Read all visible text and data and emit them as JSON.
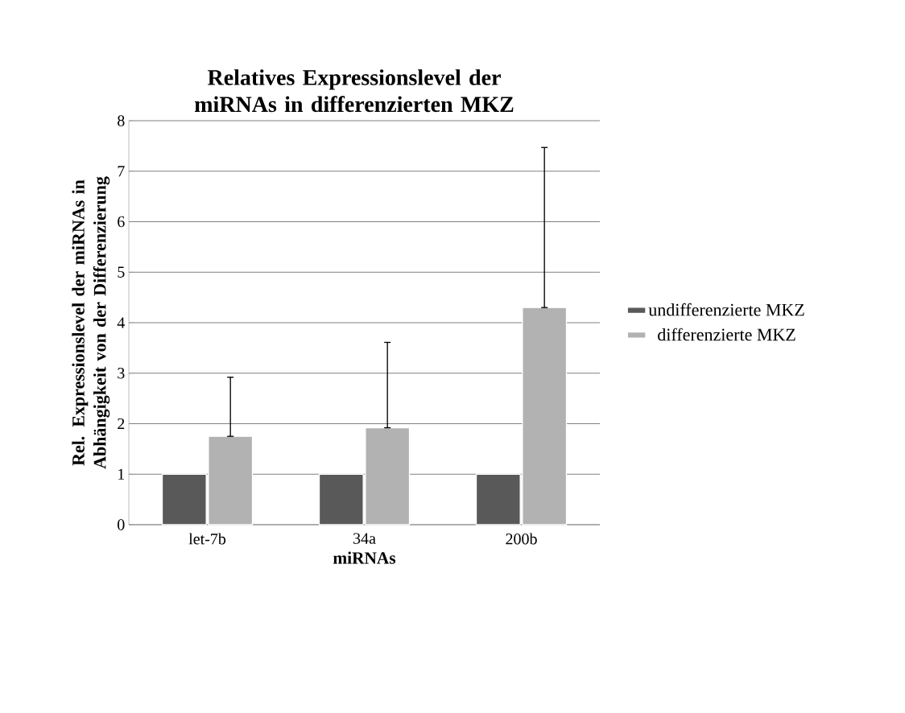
{
  "chart_data": {
    "type": "bar",
    "title": "Relatives Expressionslevel der miRNAs in differenzierten MKZ",
    "xlabel": "miRNAs",
    "ylabel": "Rel. Expressionslevel der miRNAs in Abhängigkeit von der Differenzierung",
    "categories": [
      "let-7b",
      "34a",
      "200b"
    ],
    "series": [
      {
        "name": "undifferenzierte MKZ",
        "color": "#595959",
        "values": [
          1,
          1,
          1
        ]
      },
      {
        "name": "differenzierte MKZ",
        "color": "#b2b2b2",
        "values": [
          1.75,
          1.92,
          4.3
        ],
        "errors": [
          [
            1.75,
            2.92
          ],
          [
            1.92,
            3.61
          ],
          [
            4.3,
            7.47
          ]
        ]
      }
    ],
    "ylim": [
      0,
      8
    ],
    "yticks": [
      0,
      1,
      2,
      3,
      4,
      5,
      6,
      7,
      8
    ],
    "grid": "y",
    "legend": "right"
  }
}
